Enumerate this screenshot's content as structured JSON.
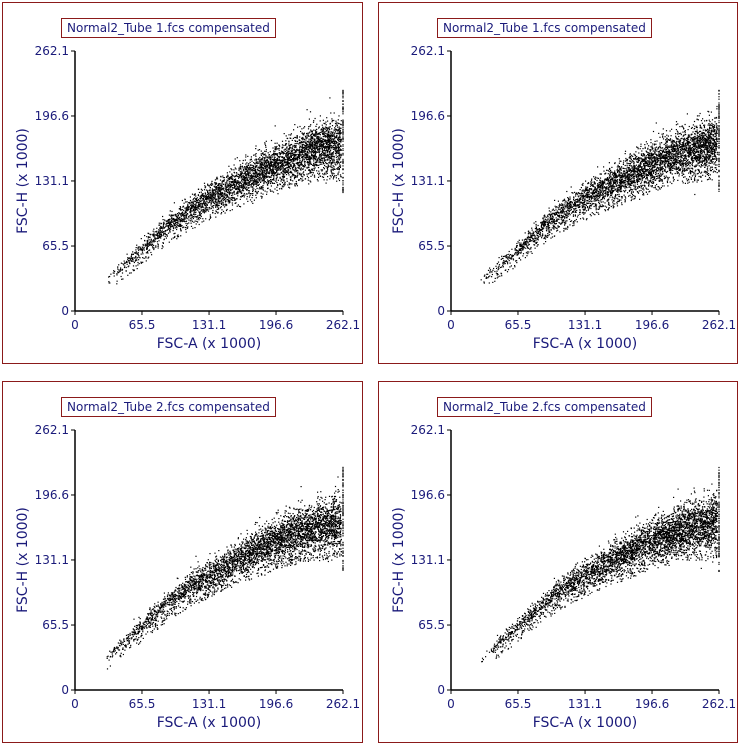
{
  "chart_data": [
    {
      "type": "scatter",
      "title": "Normal2_Tube 1.fcs compensated",
      "xlabel": "FSC-A (x 1000)",
      "ylabel": "FSC-H (x 1000)",
      "xlim": [
        0,
        262.1
      ],
      "ylim": [
        0,
        262.1
      ],
      "xticks": [
        "0",
        "65.5",
        "131.1",
        "196.6",
        "262.1"
      ],
      "yticks": [
        "0",
        "65.5",
        "131.1",
        "196.6",
        "262.1"
      ],
      "x": [
        30,
        45,
        60,
        75,
        90,
        105,
        120,
        135,
        150,
        165,
        180,
        195,
        210,
        225,
        240,
        255,
        262
      ],
      "y": [
        30,
        45,
        58,
        72,
        86,
        98,
        108,
        117,
        126,
        134,
        142,
        150,
        156,
        162,
        166,
        170,
        172
      ],
      "color": "#000000"
    },
    {
      "type": "scatter",
      "title": "Normal2_Tube 1.fcs compensated",
      "xlabel": "FSC-A (x 1000)",
      "ylabel": "FSC-H (x 1000)",
      "xlim": [
        0,
        262.1
      ],
      "ylim": [
        0,
        262.1
      ],
      "xticks": [
        "0",
        "65.5",
        "131.1",
        "196.6",
        "262.1"
      ],
      "yticks": [
        "0",
        "65.5",
        "131.1",
        "196.6",
        "262.1"
      ],
      "x": [
        30,
        45,
        60,
        75,
        90,
        105,
        120,
        135,
        150,
        165,
        180,
        195,
        210,
        225,
        240,
        255,
        262
      ],
      "y": [
        30,
        45,
        58,
        72,
        86,
        98,
        108,
        117,
        126,
        134,
        142,
        150,
        156,
        162,
        166,
        170,
        172
      ],
      "color": "#000000"
    },
    {
      "type": "scatter",
      "title": "Normal2_Tube 2.fcs compensated",
      "xlabel": "FSC-A (x 1000)",
      "ylabel": "FSC-H (x 1000)",
      "xlim": [
        0,
        262.1
      ],
      "ylim": [
        0,
        262.1
      ],
      "xticks": [
        "0",
        "65.5",
        "131.1",
        "196.6",
        "262.1"
      ],
      "yticks": [
        "0",
        "65.5",
        "131.1",
        "196.6",
        "262.1"
      ],
      "x": [
        30,
        45,
        60,
        75,
        90,
        105,
        120,
        135,
        150,
        165,
        180,
        195,
        210,
        225,
        240,
        255,
        262
      ],
      "y": [
        31,
        46,
        60,
        74,
        88,
        100,
        110,
        119,
        128,
        136,
        144,
        152,
        158,
        163,
        167,
        170,
        171
      ],
      "color": "#000000"
    },
    {
      "type": "scatter",
      "title": "Normal2_Tube 2.fcs compensated",
      "xlabel": "FSC-A (x 1000)",
      "ylabel": "FSC-H (x 1000)",
      "xlim": [
        0,
        262.1
      ],
      "ylim": [
        0,
        262.1
      ],
      "xticks": [
        "0",
        "65.5",
        "131.1",
        "196.6",
        "262.1"
      ],
      "yticks": [
        "0",
        "65.5",
        "131.1",
        "196.6",
        "262.1"
      ],
      "x": [
        30,
        45,
        60,
        75,
        90,
        105,
        120,
        135,
        150,
        165,
        180,
        195,
        210,
        225,
        240,
        255,
        262
      ],
      "y": [
        31,
        46,
        60,
        74,
        88,
        100,
        110,
        119,
        128,
        136,
        144,
        152,
        158,
        163,
        167,
        170,
        171
      ],
      "color": "#000000"
    }
  ],
  "colors": {
    "frame": "#8b1a1a",
    "text": "#1a1a7a",
    "points": "#000000"
  }
}
